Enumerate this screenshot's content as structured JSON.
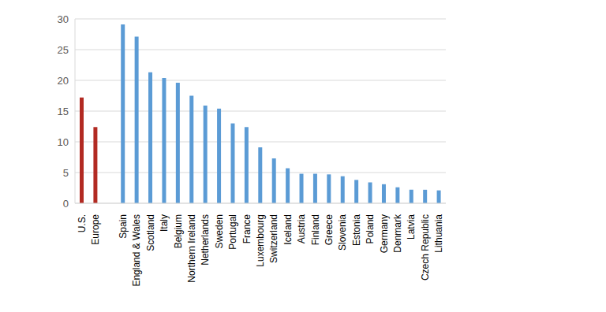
{
  "chart_data": {
    "type": "bar",
    "categories": [
      "U.S.",
      "Europe",
      null,
      "Spain",
      "England & Wales",
      "Scotland",
      "Italy",
      "Belgium",
      "Northern Ireland",
      "Netherlands",
      "Sweden",
      "Portugal",
      "France",
      "Luxembourg",
      "Switzerland",
      "Iceland",
      "Austria",
      "Finland",
      "Greece",
      "Slovenia",
      "Estonia",
      "Poland",
      "Germany",
      "Denmark",
      "Latvia",
      "Czech Republic",
      "Lithuania"
    ],
    "values": [
      17.2,
      12.4,
      null,
      29.1,
      27.1,
      21.3,
      20.4,
      19.6,
      17.5,
      15.9,
      15.4,
      13.0,
      12.4,
      9.1,
      7.3,
      5.7,
      4.8,
      4.8,
      4.7,
      4.4,
      3.8,
      3.4,
      3.1,
      2.6,
      2.2,
      2.2,
      2.1
    ],
    "colors": [
      "#b22a22",
      "#b22a22",
      "#5b9bd5",
      "#5b9bd5",
      "#5b9bd5",
      "#5b9bd5",
      "#5b9bd5",
      "#5b9bd5",
      "#5b9bd5",
      "#5b9bd5",
      "#5b9bd5",
      "#5b9bd5",
      "#5b9bd5",
      "#5b9bd5",
      "#5b9bd5",
      "#5b9bd5",
      "#5b9bd5",
      "#5b9bd5",
      "#5b9bd5",
      "#5b9bd5",
      "#5b9bd5",
      "#5b9bd5",
      "#5b9bd5",
      "#5b9bd5",
      "#5b9bd5",
      "#5b9bd5",
      "#5b9bd5"
    ],
    "ylim": [
      0,
      30
    ],
    "yticks": [
      0,
      5,
      10,
      15,
      20,
      25,
      30
    ],
    "grid": true
  }
}
